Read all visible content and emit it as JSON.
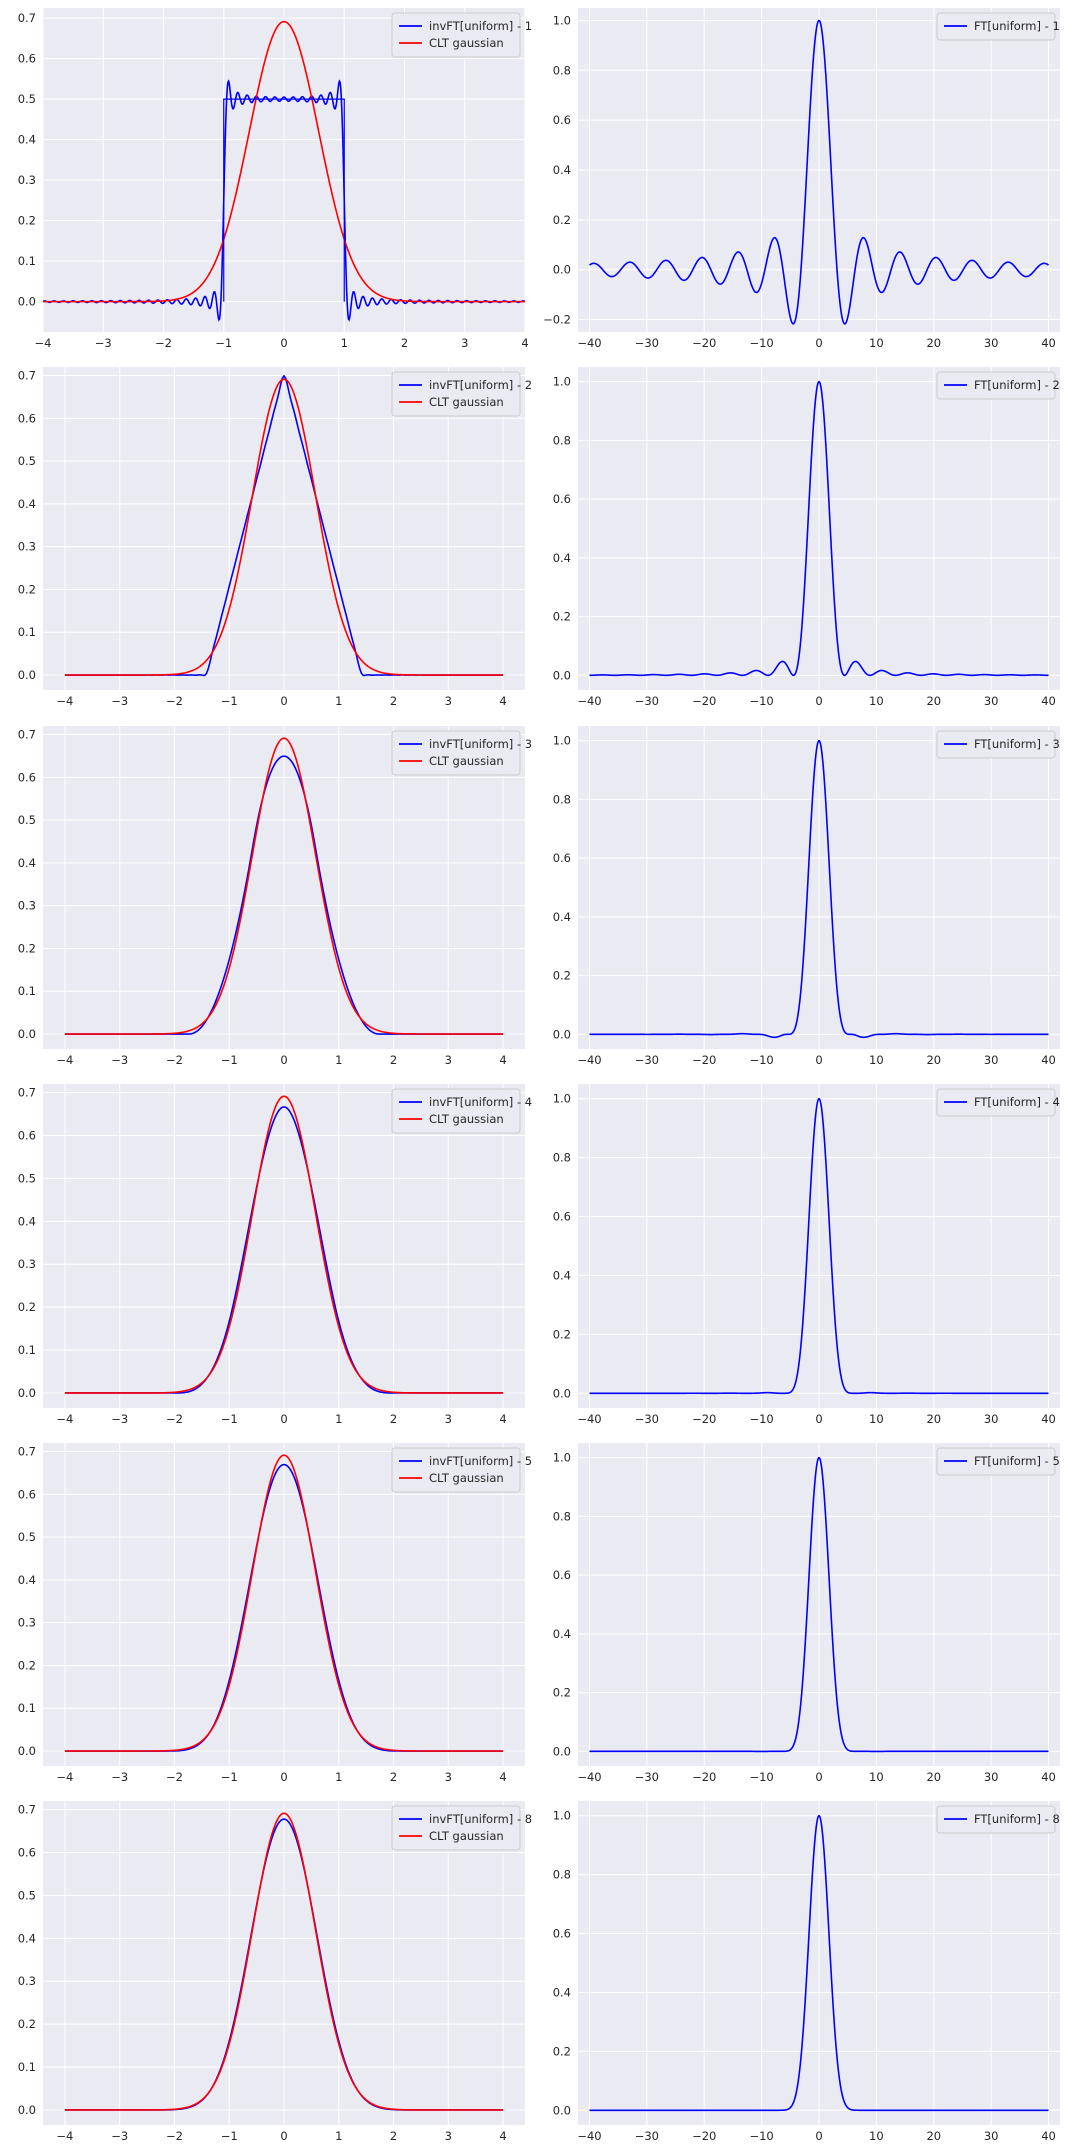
{
  "colors": {
    "panel_bg": "#eaeaf2",
    "grid": "#ffffff",
    "blue": "#0000ff",
    "red": "#ff0000",
    "legend_bg": "#eaeaf2",
    "legend_border": "#cccccc"
  },
  "chart_data": [
    {
      "type": "line",
      "row": 1,
      "col": 1,
      "grid": true,
      "legend": "top-right",
      "xlim": [
        -4,
        4
      ],
      "ylim": [
        -0.075,
        0.725
      ],
      "xticks": [
        -4,
        -3,
        -2,
        -1,
        0,
        1,
        2,
        3,
        4
      ],
      "yticks": [
        0.0,
        0.1,
        0.2,
        0.3,
        0.4,
        0.5,
        0.6,
        0.7
      ],
      "xticklabels": [
        "−4",
        "−3",
        "−2",
        "−1",
        "0",
        "1",
        "2",
        "3",
        "4"
      ],
      "yticklabels": [
        "0.0",
        "0.1",
        "0.2",
        "0.3",
        "0.4",
        "0.5",
        "0.6",
        "0.7"
      ],
      "series": [
        {
          "name": "invFT[uniform] - 1",
          "color": "blue",
          "kind": "invft",
          "n": 1
        },
        {
          "name": "CLT gaussian",
          "color": "red",
          "kind": "clt",
          "n": 1
        }
      ]
    },
    {
      "type": "line",
      "row": 1,
      "col": 2,
      "grid": true,
      "legend": "top-right",
      "xlim": [
        -42,
        42
      ],
      "ylim": [
        -0.25,
        1.05
      ],
      "xticks": [
        -40,
        -30,
        -20,
        -10,
        0,
        10,
        20,
        30,
        40
      ],
      "yticks": [
        -0.2,
        0.0,
        0.2,
        0.4,
        0.6,
        0.8,
        1.0
      ],
      "xticklabels": [
        "−40",
        "−30",
        "−20",
        "−10",
        "0",
        "10",
        "20",
        "30",
        "40"
      ],
      "yticklabels": [
        "−0.2",
        "0.0",
        "0.2",
        "0.4",
        "0.6",
        "0.8",
        "1.0"
      ],
      "series": [
        {
          "name": "FT[uniform] - 1",
          "color": "blue",
          "kind": "ft",
          "n": 1
        }
      ]
    },
    {
      "type": "line",
      "row": 2,
      "col": 1,
      "grid": true,
      "legend": "top-right",
      "xlim": [
        -4.4,
        4.4
      ],
      "ylim": [
        -0.035,
        0.72
      ],
      "xticks": [
        -4,
        -3,
        -2,
        -1,
        0,
        1,
        2,
        3,
        4
      ],
      "yticks": [
        0.0,
        0.1,
        0.2,
        0.3,
        0.4,
        0.5,
        0.6,
        0.7
      ],
      "xticklabels": [
        "−4",
        "−3",
        "−2",
        "−1",
        "0",
        "1",
        "2",
        "3",
        "4"
      ],
      "yticklabels": [
        "0.0",
        "0.1",
        "0.2",
        "0.3",
        "0.4",
        "0.5",
        "0.6",
        "0.7"
      ],
      "series": [
        {
          "name": "invFT[uniform] - 2",
          "color": "blue",
          "kind": "invft",
          "n": 2
        },
        {
          "name": "CLT gaussian",
          "color": "red",
          "kind": "clt",
          "n": 2
        }
      ]
    },
    {
      "type": "line",
      "row": 2,
      "col": 2,
      "grid": true,
      "legend": "top-right",
      "xlim": [
        -42,
        42
      ],
      "ylim": [
        -0.05,
        1.05
      ],
      "xticks": [
        -40,
        -30,
        -20,
        -10,
        0,
        10,
        20,
        30,
        40
      ],
      "yticks": [
        0.0,
        0.2,
        0.4,
        0.6,
        0.8,
        1.0
      ],
      "xticklabels": [
        "−40",
        "−30",
        "−20",
        "−10",
        "0",
        "10",
        "20",
        "30",
        "40"
      ],
      "yticklabels": [
        "0.0",
        "0.2",
        "0.4",
        "0.6",
        "0.8",
        "1.0"
      ],
      "series": [
        {
          "name": "FT[uniform] - 2",
          "color": "blue",
          "kind": "ft",
          "n": 2
        }
      ]
    },
    {
      "type": "line",
      "row": 3,
      "col": 1,
      "grid": true,
      "legend": "top-right",
      "xlim": [
        -4.4,
        4.4
      ],
      "ylim": [
        -0.035,
        0.72
      ],
      "xticks": [
        -4,
        -3,
        -2,
        -1,
        0,
        1,
        2,
        3,
        4
      ],
      "yticks": [
        0.0,
        0.1,
        0.2,
        0.3,
        0.4,
        0.5,
        0.6,
        0.7
      ],
      "xticklabels": [
        "−4",
        "−3",
        "−2",
        "−1",
        "0",
        "1",
        "2",
        "3",
        "4"
      ],
      "yticklabels": [
        "0.0",
        "0.1",
        "0.2",
        "0.3",
        "0.4",
        "0.5",
        "0.6",
        "0.7"
      ],
      "series": [
        {
          "name": "invFT[uniform] - 3",
          "color": "blue",
          "kind": "invft",
          "n": 3
        },
        {
          "name": "CLT gaussian",
          "color": "red",
          "kind": "clt",
          "n": 3
        }
      ]
    },
    {
      "type": "line",
      "row": 3,
      "col": 2,
      "grid": true,
      "legend": "top-right",
      "xlim": [
        -42,
        42
      ],
      "ylim": [
        -0.05,
        1.05
      ],
      "xticks": [
        -40,
        -30,
        -20,
        -10,
        0,
        10,
        20,
        30,
        40
      ],
      "yticks": [
        0.0,
        0.2,
        0.4,
        0.6,
        0.8,
        1.0
      ],
      "xticklabels": [
        "−40",
        "−30",
        "−20",
        "−10",
        "0",
        "10",
        "20",
        "30",
        "40"
      ],
      "yticklabels": [
        "0.0",
        "0.2",
        "0.4",
        "0.6",
        "0.8",
        "1.0"
      ],
      "series": [
        {
          "name": "FT[uniform] - 3",
          "color": "blue",
          "kind": "ft",
          "n": 3
        }
      ]
    },
    {
      "type": "line",
      "row": 4,
      "col": 1,
      "grid": true,
      "legend": "top-right",
      "xlim": [
        -4.4,
        4.4
      ],
      "ylim": [
        -0.035,
        0.72
      ],
      "xticks": [
        -4,
        -3,
        -2,
        -1,
        0,
        1,
        2,
        3,
        4
      ],
      "yticks": [
        0.0,
        0.1,
        0.2,
        0.3,
        0.4,
        0.5,
        0.6,
        0.7
      ],
      "xticklabels": [
        "−4",
        "−3",
        "−2",
        "−1",
        "0",
        "1",
        "2",
        "3",
        "4"
      ],
      "yticklabels": [
        "0.0",
        "0.1",
        "0.2",
        "0.3",
        "0.4",
        "0.5",
        "0.6",
        "0.7"
      ],
      "series": [
        {
          "name": "invFT[uniform] - 4",
          "color": "blue",
          "kind": "invft",
          "n": 4
        },
        {
          "name": "CLT gaussian",
          "color": "red",
          "kind": "clt",
          "n": 4
        }
      ]
    },
    {
      "type": "line",
      "row": 4,
      "col": 2,
      "grid": true,
      "legend": "top-right",
      "xlim": [
        -42,
        42
      ],
      "ylim": [
        -0.05,
        1.05
      ],
      "xticks": [
        -40,
        -30,
        -20,
        -10,
        0,
        10,
        20,
        30,
        40
      ],
      "yticks": [
        0.0,
        0.2,
        0.4,
        0.6,
        0.8,
        1.0
      ],
      "xticklabels": [
        "−40",
        "−30",
        "−20",
        "−10",
        "0",
        "10",
        "20",
        "30",
        "40"
      ],
      "yticklabels": [
        "0.0",
        "0.2",
        "0.4",
        "0.6",
        "0.8",
        "1.0"
      ],
      "series": [
        {
          "name": "FT[uniform] - 4",
          "color": "blue",
          "kind": "ft",
          "n": 4
        }
      ]
    },
    {
      "type": "line",
      "row": 5,
      "col": 1,
      "grid": true,
      "legend": "top-right",
      "xlim": [
        -4.4,
        4.4
      ],
      "ylim": [
        -0.035,
        0.72
      ],
      "xticks": [
        -4,
        -3,
        -2,
        -1,
        0,
        1,
        2,
        3,
        4
      ],
      "yticks": [
        0.0,
        0.1,
        0.2,
        0.3,
        0.4,
        0.5,
        0.6,
        0.7
      ],
      "xticklabels": [
        "−4",
        "−3",
        "−2",
        "−1",
        "0",
        "1",
        "2",
        "3",
        "4"
      ],
      "yticklabels": [
        "0.0",
        "0.1",
        "0.2",
        "0.3",
        "0.4",
        "0.5",
        "0.6",
        "0.7"
      ],
      "series": [
        {
          "name": "invFT[uniform] - 5",
          "color": "blue",
          "kind": "invft",
          "n": 5
        },
        {
          "name": "CLT gaussian",
          "color": "red",
          "kind": "clt",
          "n": 5
        }
      ]
    },
    {
      "type": "line",
      "row": 5,
      "col": 2,
      "grid": true,
      "legend": "top-right",
      "xlim": [
        -42,
        42
      ],
      "ylim": [
        -0.05,
        1.05
      ],
      "xticks": [
        -40,
        -30,
        -20,
        -10,
        0,
        10,
        20,
        30,
        40
      ],
      "yticks": [
        0.0,
        0.2,
        0.4,
        0.6,
        0.8,
        1.0
      ],
      "xticklabels": [
        "−40",
        "−30",
        "−20",
        "−10",
        "0",
        "10",
        "20",
        "30",
        "40"
      ],
      "yticklabels": [
        "0.0",
        "0.2",
        "0.4",
        "0.6",
        "0.8",
        "1.0"
      ],
      "series": [
        {
          "name": "FT[uniform] - 5",
          "color": "blue",
          "kind": "ft",
          "n": 5
        }
      ]
    },
    {
      "type": "line",
      "row": 6,
      "col": 1,
      "grid": true,
      "legend": "top-right",
      "xlim": [
        -4.4,
        4.4
      ],
      "ylim": [
        -0.035,
        0.72
      ],
      "xticks": [
        -4,
        -3,
        -2,
        -1,
        0,
        1,
        2,
        3,
        4
      ],
      "yticks": [
        0.0,
        0.1,
        0.2,
        0.3,
        0.4,
        0.5,
        0.6,
        0.7
      ],
      "xticklabels": [
        "−4",
        "−3",
        "−2",
        "−1",
        "0",
        "1",
        "2",
        "3",
        "4"
      ],
      "yticklabels": [
        "0.0",
        "0.1",
        "0.2",
        "0.3",
        "0.4",
        "0.5",
        "0.6",
        "0.7"
      ],
      "series": [
        {
          "name": "invFT[uniform] - 8",
          "color": "blue",
          "kind": "invft",
          "n": 8
        },
        {
          "name": "CLT gaussian",
          "color": "red",
          "kind": "clt",
          "n": 8
        }
      ]
    },
    {
      "type": "line",
      "row": 6,
      "col": 2,
      "grid": true,
      "legend": "top-right",
      "xlim": [
        -42,
        42
      ],
      "ylim": [
        -0.05,
        1.05
      ],
      "xticks": [
        -40,
        -30,
        -20,
        -10,
        0,
        10,
        20,
        30,
        40
      ],
      "yticks": [
        0.0,
        0.2,
        0.4,
        0.6,
        0.8,
        1.0
      ],
      "xticklabels": [
        "−40",
        "−30",
        "−20",
        "−10",
        "0",
        "10",
        "20",
        "30",
        "40"
      ],
      "yticklabels": [
        "0.0",
        "0.2",
        "0.4",
        "0.6",
        "0.8",
        "1.0"
      ],
      "series": [
        {
          "name": "FT[uniform] - 8",
          "color": "blue",
          "kind": "ft",
          "n": 8
        }
      ]
    }
  ]
}
